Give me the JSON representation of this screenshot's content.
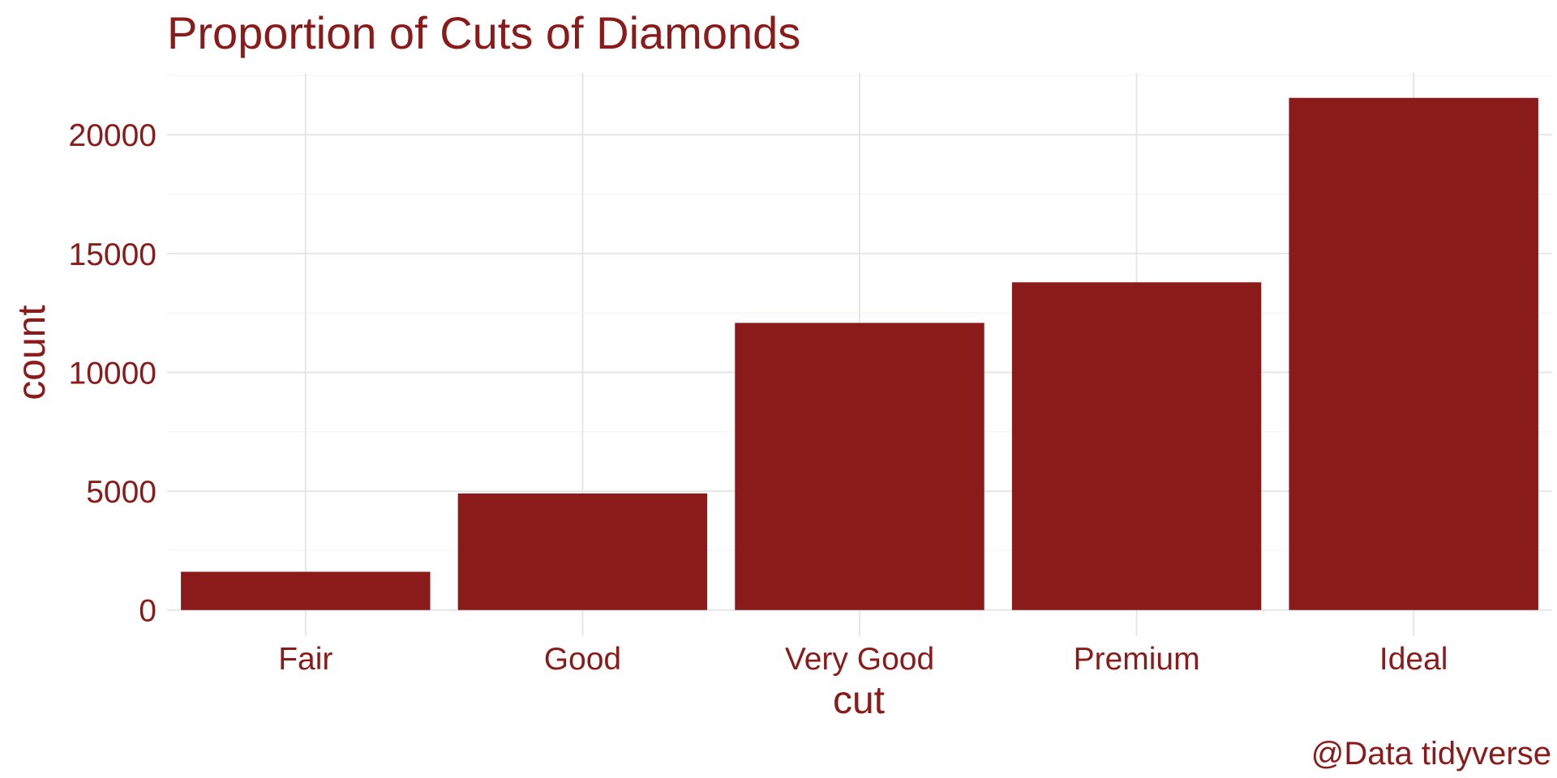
{
  "chart_data": {
    "type": "bar",
    "title": "Proportion of Cuts of Diamonds",
    "xlabel": "cut",
    "ylabel": "count",
    "caption": "@Data tidyverse",
    "categories": [
      "Fair",
      "Good",
      "Very Good",
      "Premium",
      "Ideal"
    ],
    "values": [
      1610,
      4906,
      12082,
      13791,
      21551
    ],
    "ylim": [
      -1100,
      22600
    ],
    "yticks": [
      0,
      5000,
      10000,
      15000,
      20000
    ],
    "ytick_labels": [
      "0",
      "5000",
      "10000",
      "15000",
      "20000"
    ],
    "grid": true,
    "legend": "none",
    "colors": {
      "bar": "#8B1A1A",
      "text": "#8B1A1A",
      "grid_major": "#E6E6E6",
      "grid_minor": "#F3F3F3",
      "background": "#FFFFFF"
    }
  }
}
